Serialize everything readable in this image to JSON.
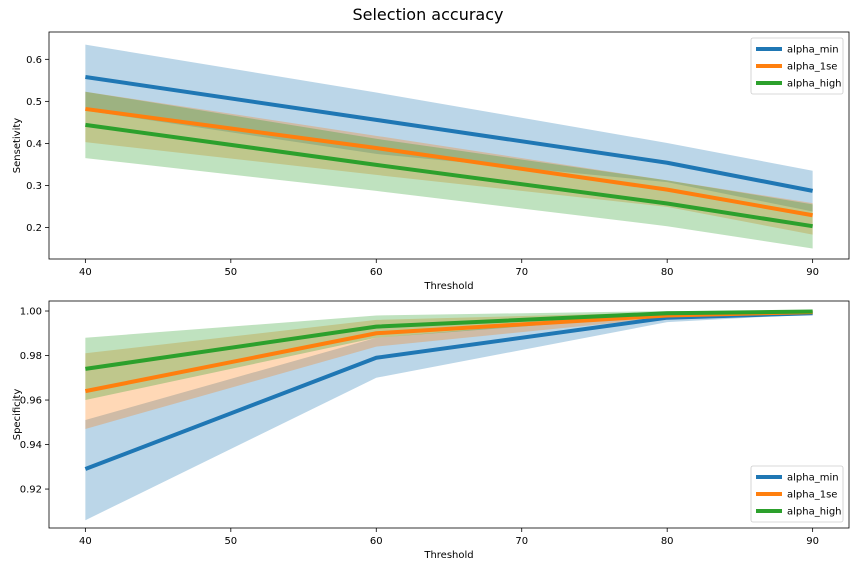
{
  "title": "Selection accuracy",
  "colors": {
    "alpha_min": "#1f77b4",
    "alpha_1se": "#ff7f0e",
    "alpha_high": "#2ca02c"
  },
  "chart_data": [
    {
      "type": "line",
      "xlabel": "Threshold",
      "ylabel": "Sensetivity",
      "xlim": [
        37.5,
        92.5
      ],
      "ylim": [
        0.125,
        0.665
      ],
      "xticks": [
        40,
        50,
        60,
        70,
        80,
        90
      ],
      "xtick_labels": [
        "40",
        "50",
        "60",
        "70",
        "80",
        "90"
      ],
      "yticks": [
        0.2,
        0.3,
        0.4,
        0.5,
        0.6
      ],
      "ytick_labels": [
        "0.2",
        "0.3",
        "0.4",
        "0.5",
        "0.6"
      ],
      "legend_position": "top-right",
      "x": [
        40,
        60,
        80,
        90
      ],
      "series": [
        {
          "name": "alpha_min",
          "values": [
            0.558,
            0.456,
            0.354,
            0.287
          ],
          "lower": [
            0.478,
            0.375,
            0.308,
            0.238
          ],
          "upper": [
            0.635,
            0.521,
            0.401,
            0.335
          ]
        },
        {
          "name": "alpha_1se",
          "values": [
            0.482,
            0.389,
            0.29,
            0.229
          ],
          "lower": [
            0.403,
            0.325,
            0.249,
            0.183
          ],
          "upper": [
            0.523,
            0.418,
            0.312,
            0.258
          ]
        },
        {
          "name": "alpha_high",
          "values": [
            0.444,
            0.349,
            0.257,
            0.203
          ],
          "lower": [
            0.365,
            0.287,
            0.203,
            0.15
          ],
          "upper": [
            0.523,
            0.411,
            0.312,
            0.255
          ]
        }
      ]
    },
    {
      "type": "line",
      "xlabel": "Threshold",
      "ylabel": "Specificity",
      "xlim": [
        37.5,
        92.5
      ],
      "ylim": [
        0.9025,
        1.0045
      ],
      "xticks": [
        40,
        50,
        60,
        70,
        80,
        90
      ],
      "xtick_labels": [
        "40",
        "50",
        "60",
        "70",
        "80",
        "90"
      ],
      "yticks": [
        0.92,
        0.94,
        0.96,
        0.98,
        1.0
      ],
      "ytick_labels": [
        "0.92",
        "0.94",
        "0.96",
        "0.98",
        "1.00"
      ],
      "legend_position": "bottom-right",
      "x": [
        40,
        60,
        80,
        90
      ],
      "series": [
        {
          "name": "alpha_min",
          "values": [
            0.929,
            0.979,
            0.997,
            0.999
          ],
          "lower": [
            0.906,
            0.97,
            0.995,
            0.9985
          ],
          "upper": [
            0.951,
            0.988,
            0.999,
            1.0
          ]
        },
        {
          "name": "alpha_1se",
          "values": [
            0.964,
            0.99,
            0.998,
            0.9995
          ],
          "lower": [
            0.947,
            0.984,
            0.997,
            0.999
          ],
          "upper": [
            0.981,
            0.996,
            0.9995,
            1.0
          ]
        },
        {
          "name": "alpha_high",
          "values": [
            0.974,
            0.993,
            0.999,
            0.9998
          ],
          "lower": [
            0.96,
            0.988,
            0.998,
            0.9995
          ],
          "upper": [
            0.988,
            0.998,
            1.0,
            1.0
          ]
        }
      ]
    }
  ]
}
